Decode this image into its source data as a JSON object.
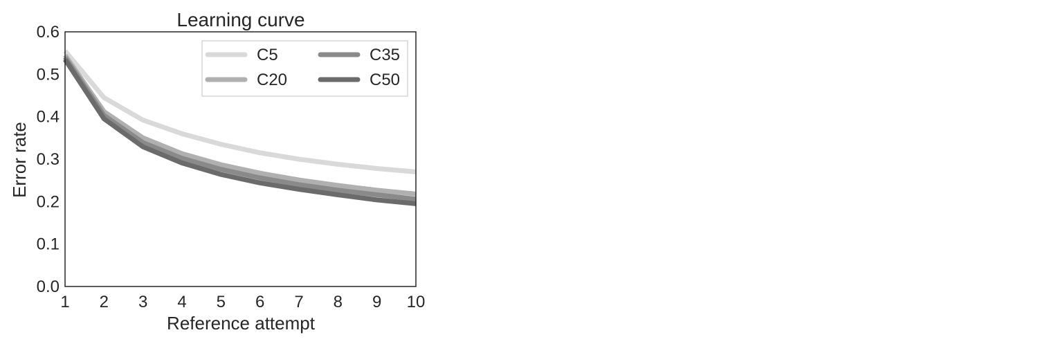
{
  "chart_data": {
    "type": "line",
    "title": "Learning curve",
    "xlabel": "Reference attempt",
    "ylabel": "Error rate",
    "xlim": [
      1,
      10
    ],
    "ylim": [
      0.0,
      0.6
    ],
    "x": [
      1,
      2,
      3,
      4,
      5,
      6,
      7,
      8,
      9,
      10
    ],
    "xticks": [
      "1",
      "2",
      "3",
      "4",
      "5",
      "6",
      "7",
      "8",
      "9",
      "10"
    ],
    "yticks": [
      "0.0",
      "0.1",
      "0.2",
      "0.3",
      "0.4",
      "0.5",
      "0.6"
    ],
    "grid": false,
    "legend_position": "top-right",
    "series": [
      {
        "name": "C5",
        "color": "#d9d9d9",
        "values": [
          0.555,
          0.445,
          0.392,
          0.36,
          0.335,
          0.315,
          0.3,
          0.288,
          0.278,
          0.27
        ]
      },
      {
        "name": "C20",
        "color": "#b0b0b0",
        "values": [
          0.545,
          0.412,
          0.35,
          0.313,
          0.287,
          0.267,
          0.251,
          0.238,
          0.227,
          0.218
        ]
      },
      {
        "name": "C35",
        "color": "#8a8a8a",
        "values": [
          0.54,
          0.403,
          0.339,
          0.302,
          0.276,
          0.256,
          0.24,
          0.227,
          0.216,
          0.206
        ]
      },
      {
        "name": "C50",
        "color": "#6b6b6b",
        "values": [
          0.535,
          0.395,
          0.329,
          0.291,
          0.264,
          0.244,
          0.229,
          0.216,
          0.204,
          0.195
        ]
      }
    ]
  }
}
